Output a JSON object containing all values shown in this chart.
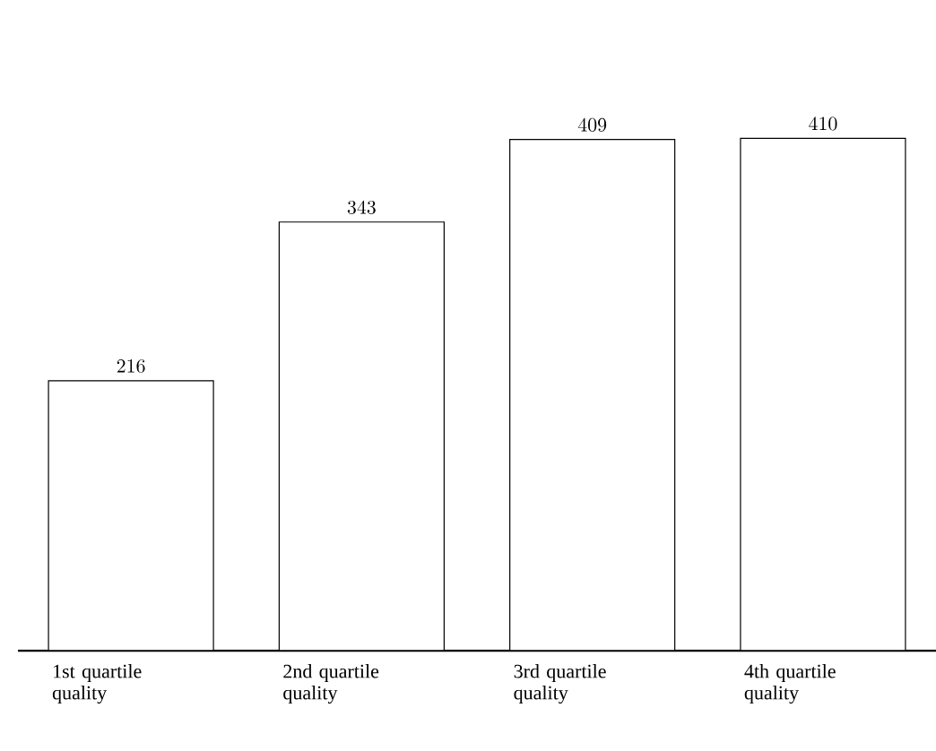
{
  "chart_data": {
    "type": "bar",
    "categories": [
      "1st quartile quality",
      "2nd quartile quality",
      "3rd quartile quality",
      "4th quartile quality"
    ],
    "values": [
      216,
      343,
      409,
      410
    ],
    "color": "#ffffff",
    "data_labels": true
  }
}
